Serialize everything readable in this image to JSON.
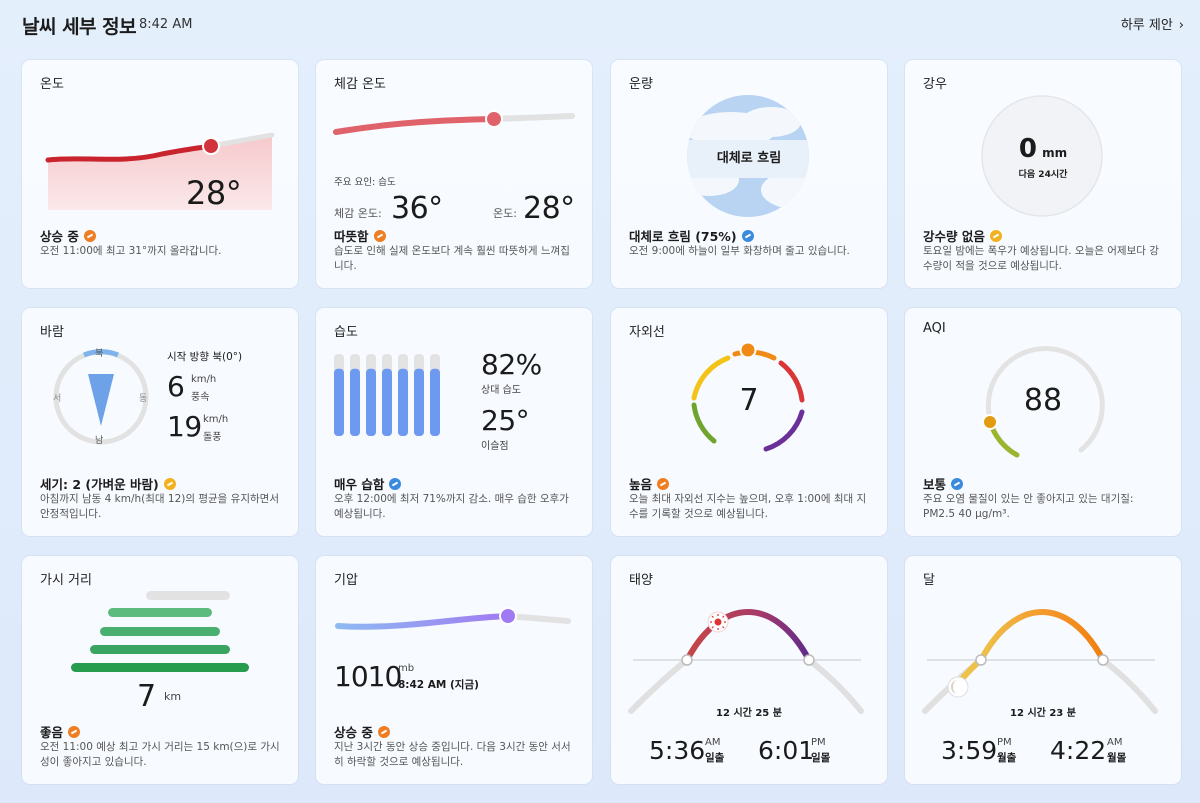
{
  "header": {
    "title": "날씨 세부 정보",
    "time": "8:42 AM",
    "suggest": "하루 제안"
  },
  "temperature": {
    "title": "온도",
    "value": "28°",
    "status": "상승 중",
    "desc": "오전 11:00에 최고 31°까지 올라갑니다."
  },
  "feels": {
    "title": "체감 온도",
    "factor": "주요 요인: 습도",
    "feels_label": "체감 온도:",
    "feels_value": "36°",
    "temp_label": "온도:",
    "temp_value": "28°",
    "status": "따뜻함",
    "desc": "습도로 인해 실제 온도보다 계속 훨씬 따뜻하게 느껴집니다."
  },
  "cloud": {
    "title": "운량",
    "center": "대체로 흐림",
    "status": "대체로 흐림 (75%)",
    "desc": "오전 9:00에 하늘이 일부 화창하며 줄고 있습니다."
  },
  "rain": {
    "title": "강우",
    "amount": "0",
    "unit": "mm",
    "period": "다음 24시간",
    "status": "강수량 없음",
    "desc": "토요일 밤에는 폭우가 예상됩니다. 오늘은 어제보다 강수량이 적을 것으로 예상됩니다."
  },
  "wind": {
    "title": "바람",
    "n": "북",
    "e": "동",
    "s": "남",
    "w": "서",
    "direction": "시작 방향 북(0°)",
    "speed": "6",
    "speed_unit": "km/h",
    "speed_label": "풍속",
    "gust": "19",
    "gust_unit": "km/h",
    "gust_label": "돌풍",
    "status": "세기: 2 (가벼운 바람)",
    "desc": "아침까지 남동 4 km/h(최대 12)의 평균을 유지하면서 안정적입니다."
  },
  "humidity": {
    "title": "습도",
    "value": "82%",
    "label": "상대 습도",
    "dew": "25°",
    "dew_label": "이슬점",
    "level": 0.82,
    "status": "매우 습함",
    "desc": "오후 12:00에 최저 71%까지 감소. 매우 습한 오후가 예상됩니다."
  },
  "uv": {
    "title": "자외선",
    "value": "7",
    "status": "높음",
    "desc": "오늘 최대 자외선 지수는 높으며, 오후 1:00에 최대 지수를 기록할 것으로 예상됩니다."
  },
  "aqi": {
    "title": "AQI",
    "value": "88",
    "status": "보통",
    "desc": "주요 오염 물질이 있는 안 좋아지고 있는 대기질: PM2.5 40 μg/m³."
  },
  "visibility": {
    "title": "가시 거리",
    "value": "7",
    "unit": "km",
    "status": "좋음",
    "desc": "오전 11:00 예상 최고 가시 거리는 15 km(으)로 가시성이 좋아지고 있습니다."
  },
  "pressure": {
    "title": "기압",
    "value": "1010",
    "unit": "mb",
    "time": "8:42 AM (지금)",
    "status": "상승 중",
    "desc": "지난 3시간 동안 상승 중입니다. 다음 3시간 동안 서서히 하락할 것으로 예상됩니다."
  },
  "sun": {
    "title": "태양",
    "duration": "12 시간 25 분",
    "rise": "5:36",
    "rise_ampm": "AM",
    "rise_label": "일출",
    "set": "6:01",
    "set_ampm": "PM",
    "set_label": "일몰"
  },
  "moon": {
    "title": "달",
    "duration": "12 시간 23 분",
    "rise": "3:59",
    "rise_ampm": "PM",
    "rise_label": "월출",
    "set": "4:22",
    "set_ampm": "AM",
    "set_label": "월몰"
  },
  "colors": {
    "temp": "#d0333c",
    "feels": "#e0626a",
    "pressure": "#9a7ef2",
    "humidity": "#6d99f0",
    "vis": "#35a05a"
  }
}
